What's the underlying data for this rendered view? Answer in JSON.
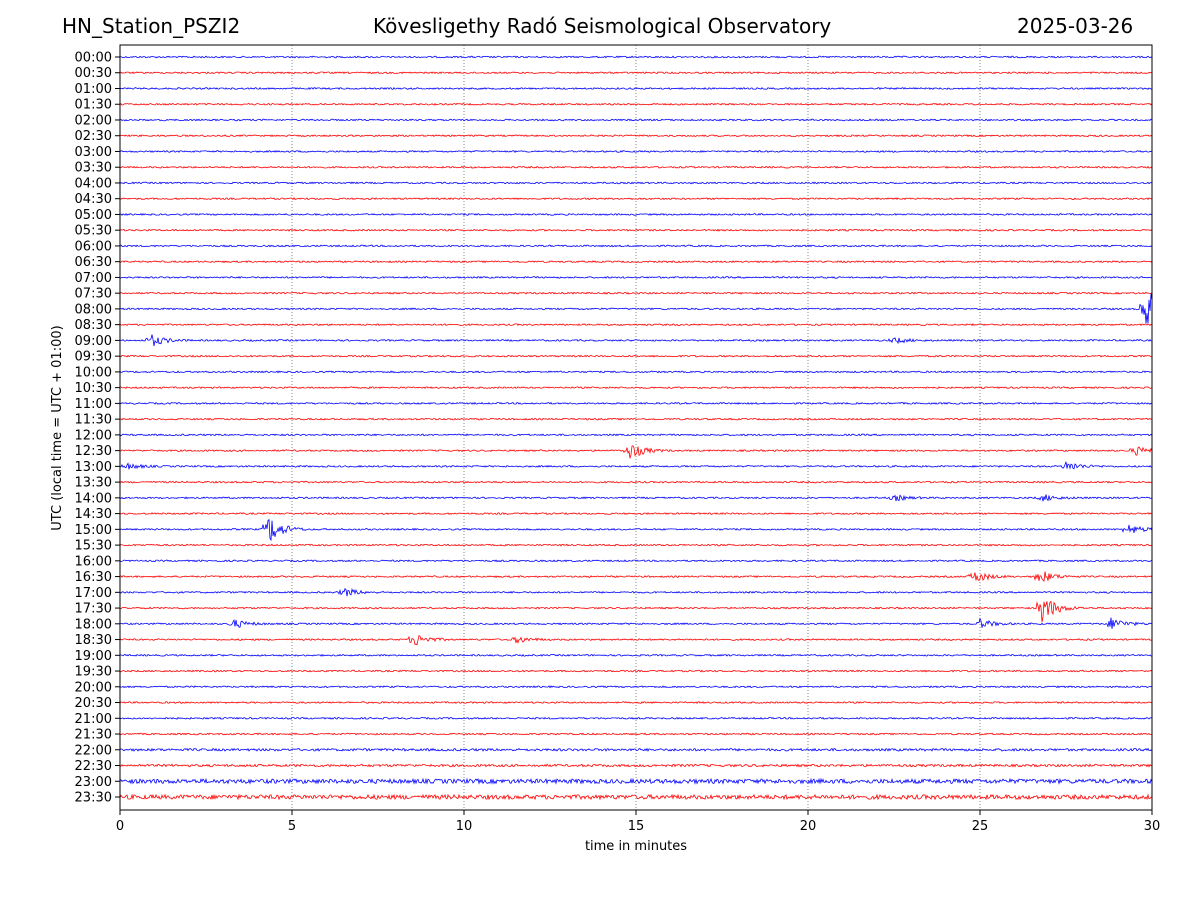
{
  "header": {
    "station": "HN_Station_PSZI2",
    "observatory": "Kövesligethy Radó Seismological Observatory",
    "date": "2025-03-26"
  },
  "chart_data": {
    "type": "line",
    "title": "Kövesligethy Radó Seismological Observatory",
    "xlabel": "time in minutes",
    "ylabel": "UTC (local time = UTC + 01:00)",
    "xlim": [
      0,
      30
    ],
    "xticks": [
      "0",
      "5",
      "10",
      "15",
      "20",
      "25",
      "30"
    ],
    "grid": "vertical dotted at every 5 minutes",
    "row_labels": [
      "00:00",
      "00:30",
      "01:00",
      "01:30",
      "02:00",
      "02:30",
      "03:00",
      "03:30",
      "04:00",
      "04:30",
      "05:00",
      "05:30",
      "06:00",
      "06:30",
      "07:00",
      "07:30",
      "08:00",
      "08:30",
      "09:00",
      "09:30",
      "10:00",
      "10:30",
      "11:00",
      "11:30",
      "12:00",
      "12:30",
      "13:00",
      "13:30",
      "14:00",
      "14:30",
      "15:00",
      "15:30",
      "16:00",
      "16:30",
      "17:00",
      "17:30",
      "18:00",
      "18:30",
      "19:00",
      "19:30",
      "20:00",
      "20:30",
      "21:00",
      "21:30",
      "22:00",
      "22:30",
      "23:00",
      "23:30"
    ],
    "series_colors": [
      "#0000ff",
      "#ff0000"
    ],
    "events": [
      {
        "row": 16,
        "minute": 29.8,
        "amplitude": 1.6
      },
      {
        "row": 18,
        "minute": 0.9,
        "amplitude": 0.4
      },
      {
        "row": 18,
        "minute": 22.5,
        "amplitude": 0.2
      },
      {
        "row": 25,
        "minute": 14.8,
        "amplitude": 0.6
      },
      {
        "row": 25,
        "minute": 29.5,
        "amplitude": 0.3
      },
      {
        "row": 26,
        "minute": 0.2,
        "amplitude": 0.2
      },
      {
        "row": 26,
        "minute": 27.5,
        "amplitude": 0.35
      },
      {
        "row": 28,
        "minute": 22.5,
        "amplitude": 0.2
      },
      {
        "row": 28,
        "minute": 26.8,
        "amplitude": 0.25
      },
      {
        "row": 30,
        "minute": 4.3,
        "amplitude": 1.0
      },
      {
        "row": 30,
        "minute": 29.3,
        "amplitude": 0.35
      },
      {
        "row": 33,
        "minute": 24.8,
        "amplitude": 0.45
      },
      {
        "row": 33,
        "minute": 26.7,
        "amplitude": 0.5
      },
      {
        "row": 34,
        "minute": 6.5,
        "amplitude": 0.3
      },
      {
        "row": 35,
        "minute": 26.8,
        "amplitude": 1.0
      },
      {
        "row": 36,
        "minute": 3.3,
        "amplitude": 0.3
      },
      {
        "row": 36,
        "minute": 25.0,
        "amplitude": 0.3
      },
      {
        "row": 36,
        "minute": 28.8,
        "amplitude": 0.45
      },
      {
        "row": 37,
        "minute": 8.5,
        "amplitude": 0.5
      },
      {
        "row": 37,
        "minute": 11.5,
        "amplitude": 0.25
      }
    ]
  }
}
